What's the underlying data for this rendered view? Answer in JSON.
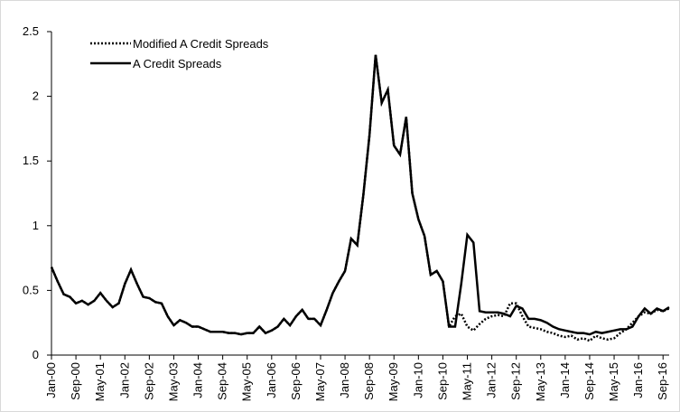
{
  "chart_data": {
    "type": "line",
    "categories": [
      "Jan-00",
      null,
      null,
      null,
      "Sep-00",
      null,
      null,
      null,
      "May-01",
      null,
      null,
      null,
      "Jan-02",
      null,
      null,
      null,
      "Sep-02",
      null,
      null,
      null,
      "May-03",
      null,
      null,
      null,
      "Jan-04",
      null,
      null,
      null,
      "Sep-04",
      null,
      null,
      null,
      "May-05",
      null,
      null,
      null,
      "Jan-06",
      null,
      null,
      null,
      "Sep-06",
      null,
      null,
      null,
      "May-07",
      null,
      null,
      null,
      "Jan-08",
      null,
      null,
      null,
      "Sep-08",
      null,
      null,
      null,
      "May-09",
      null,
      null,
      null,
      "Jan-10",
      null,
      null,
      null,
      "Sep-10",
      null,
      null,
      null,
      "May-11",
      null,
      null,
      null,
      "Jan-12",
      null,
      null,
      null,
      "Sep-12",
      null,
      null,
      null,
      "May-13",
      null,
      null,
      null,
      "Jan-14",
      null,
      null,
      null,
      "Sep-14",
      null,
      null,
      null,
      "May-15",
      null,
      null,
      null,
      "Jan-16",
      null,
      null,
      null,
      "Sep-16",
      null
    ],
    "series": [
      {
        "name": "Modified A Credit Spreads",
        "color": "#000000",
        "line_style": "dotted",
        "values": [
          0.68,
          0.57,
          0.47,
          0.45,
          0.4,
          0.42,
          0.39,
          0.42,
          0.48,
          0.42,
          0.37,
          0.4,
          0.55,
          0.66,
          0.55,
          0.45,
          0.44,
          0.41,
          0.4,
          0.3,
          0.23,
          0.27,
          0.25,
          0.22,
          0.22,
          0.2,
          0.18,
          0.18,
          0.18,
          0.17,
          0.17,
          0.16,
          0.17,
          0.17,
          0.22,
          0.17,
          0.19,
          0.22,
          0.28,
          0.23,
          0.3,
          0.35,
          0.28,
          0.28,
          0.23,
          0.35,
          0.48,
          0.57,
          0.65,
          0.9,
          0.85,
          1.24,
          1.7,
          2.32,
          1.95,
          2.05,
          1.62,
          1.55,
          1.84,
          1.25,
          1.05,
          0.92,
          0.62,
          0.65,
          0.57,
          0.22,
          0.3,
          0.32,
          0.22,
          0.19,
          0.24,
          0.28,
          0.3,
          0.31,
          0.3,
          0.4,
          0.4,
          0.3,
          0.22,
          0.21,
          0.2,
          0.18,
          0.17,
          0.15,
          0.14,
          0.15,
          0.12,
          0.13,
          0.11,
          0.15,
          0.13,
          0.12,
          0.13,
          0.17,
          0.2,
          0.25,
          0.3,
          0.33,
          0.32,
          0.35,
          0.34,
          0.36
        ]
      },
      {
        "name": "A Credit Spreads",
        "color": "#000000",
        "line_style": "solid",
        "values": [
          0.68,
          0.57,
          0.47,
          0.45,
          0.4,
          0.42,
          0.39,
          0.42,
          0.48,
          0.42,
          0.37,
          0.4,
          0.55,
          0.66,
          0.55,
          0.45,
          0.44,
          0.41,
          0.4,
          0.3,
          0.23,
          0.27,
          0.25,
          0.22,
          0.22,
          0.2,
          0.18,
          0.18,
          0.18,
          0.17,
          0.17,
          0.16,
          0.17,
          0.17,
          0.22,
          0.17,
          0.19,
          0.22,
          0.28,
          0.23,
          0.3,
          0.35,
          0.28,
          0.28,
          0.23,
          0.35,
          0.48,
          0.57,
          0.65,
          0.9,
          0.85,
          1.24,
          1.7,
          2.32,
          1.95,
          2.05,
          1.62,
          1.55,
          1.84,
          1.25,
          1.05,
          0.92,
          0.62,
          0.65,
          0.57,
          0.22,
          0.22,
          0.55,
          0.93,
          0.87,
          0.34,
          0.33,
          0.33,
          0.33,
          0.32,
          0.3,
          0.38,
          0.36,
          0.28,
          0.28,
          0.27,
          0.25,
          0.22,
          0.2,
          0.19,
          0.18,
          0.17,
          0.17,
          0.16,
          0.18,
          0.17,
          0.18,
          0.19,
          0.2,
          0.2,
          0.22,
          0.3,
          0.36,
          0.32,
          0.36,
          0.34,
          0.37
        ]
      }
    ],
    "ylim": [
      0,
      2.5
    ],
    "yticks": [
      0,
      0.5,
      1,
      1.5,
      2,
      2.5
    ],
    "grid": false,
    "legend": "top-left"
  }
}
